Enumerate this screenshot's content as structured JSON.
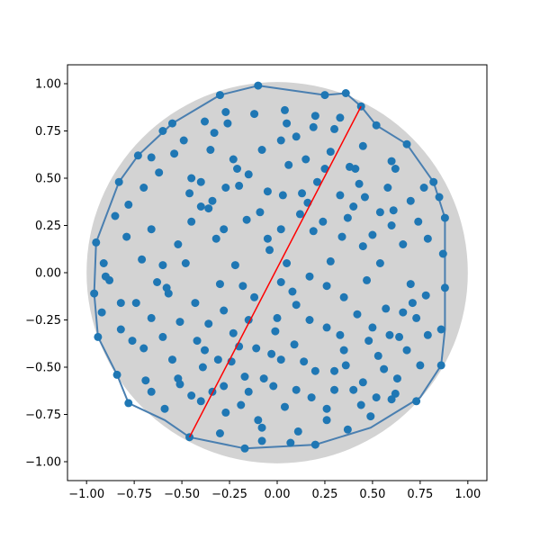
{
  "chart_data": {
    "type": "scatter",
    "title": "",
    "xlabel": "",
    "ylabel": "",
    "xlim": [
      -1.1,
      1.1
    ],
    "ylim": [
      -1.1,
      1.1
    ],
    "grid": false,
    "x_ticks": [
      "−1.00",
      "−0.75",
      "−0.50",
      "−0.25",
      "0.00",
      "0.25",
      "0.50",
      "0.75",
      "1.00"
    ],
    "y_ticks": [
      "−1.00",
      "−0.75",
      "−0.50",
      "−0.25",
      "0.00",
      "0.25",
      "0.50",
      "0.75",
      "1.00"
    ],
    "x_tick_values": [
      -1.0,
      -0.75,
      -0.5,
      -0.25,
      0.0,
      0.25,
      0.5,
      0.75,
      1.0
    ],
    "y_tick_values": [
      -1.0,
      -0.75,
      -0.5,
      -0.25,
      0.0,
      0.25,
      0.5,
      0.75,
      1.0
    ],
    "colors": {
      "points": "#1f77b4",
      "disk": "#d3d3d3",
      "hull": "#4a7fb0",
      "diameter": "#ff0000",
      "axes": "#000000"
    },
    "disk_radius": 1.0,
    "points": [
      [
        -0.1,
        0.99
      ],
      [
        0.25,
        0.94
      ],
      [
        0.44,
        0.88
      ],
      [
        -0.3,
        0.94
      ],
      [
        0.36,
        0.95
      ],
      [
        -0.55,
        0.79
      ],
      [
        -0.27,
        0.85
      ],
      [
        -0.12,
        0.84
      ],
      [
        0.04,
        0.86
      ],
      [
        0.2,
        0.83
      ],
      [
        -0.73,
        0.62
      ],
      [
        -0.6,
        0.75
      ],
      [
        -0.38,
        0.8
      ],
      [
        0.1,
        0.72
      ],
      [
        0.3,
        0.76
      ],
      [
        0.52,
        0.78
      ],
      [
        -0.83,
        0.48
      ],
      [
        -0.54,
        0.63
      ],
      [
        -0.33,
        0.74
      ],
      [
        0.02,
        0.7
      ],
      [
        0.19,
        0.77
      ],
      [
        0.68,
        0.68
      ],
      [
        -0.95,
        0.16
      ],
      [
        -0.78,
        0.36
      ],
      [
        -0.45,
        0.5
      ],
      [
        -0.21,
        0.55
      ],
      [
        0.06,
        0.57
      ],
      [
        0.38,
        0.56
      ],
      [
        0.62,
        0.55
      ],
      [
        0.82,
        0.48
      ],
      [
        -0.91,
        0.05
      ],
      [
        -0.71,
        0.07
      ],
      [
        -0.6,
        0.04
      ],
      [
        -0.4,
        0.35
      ],
      [
        -0.15,
        0.52
      ],
      [
        0.13,
        0.42
      ],
      [
        0.33,
        0.41
      ],
      [
        0.58,
        0.45
      ],
      [
        0.77,
        0.45
      ],
      [
        -0.96,
        -0.11
      ],
      [
        -0.88,
        -0.04
      ],
      [
        -0.74,
        -0.16
      ],
      [
        -0.58,
        -0.08
      ],
      [
        -0.45,
        0.27
      ],
      [
        -0.34,
        0.38
      ],
      [
        -0.09,
        0.32
      ],
      [
        0.16,
        0.37
      ],
      [
        0.4,
        0.35
      ],
      [
        0.61,
        0.33
      ],
      [
        0.88,
        0.29
      ],
      [
        -0.92,
        -0.21
      ],
      [
        -0.82,
        -0.3
      ],
      [
        -0.66,
        -0.24
      ],
      [
        -0.51,
        -0.26
      ],
      [
        -0.3,
        -0.06
      ],
      [
        -0.04,
        0.12
      ],
      [
        0.05,
        0.05
      ],
      [
        0.24,
        0.27
      ],
      [
        0.45,
        0.14
      ],
      [
        0.66,
        0.15
      ],
      [
        0.87,
        0.1
      ],
      [
        -0.94,
        -0.34
      ],
      [
        -0.76,
        -0.36
      ],
      [
        -0.6,
        -0.34
      ],
      [
        -0.38,
        -0.41
      ],
      [
        -0.23,
        -0.32
      ],
      [
        0.0,
        -0.24
      ],
      [
        0.17,
        -0.02
      ],
      [
        0.35,
        -0.13
      ],
      [
        0.57,
        -0.19
      ],
      [
        0.73,
        -0.24
      ],
      [
        0.88,
        -0.08
      ],
      [
        -0.84,
        -0.54
      ],
      [
        -0.69,
        -0.57
      ],
      [
        -0.52,
        -0.56
      ],
      [
        -0.31,
        -0.46
      ],
      [
        -0.11,
        -0.4
      ],
      [
        0.09,
        -0.38
      ],
      [
        0.26,
        -0.29
      ],
      [
        0.42,
        -0.22
      ],
      [
        0.64,
        -0.34
      ],
      [
        0.86,
        -0.3
      ],
      [
        -0.78,
        -0.69
      ],
      [
        -0.59,
        -0.72
      ],
      [
        -0.46,
        -0.87
      ],
      [
        -0.34,
        -0.63
      ],
      [
        -0.15,
        -0.63
      ],
      [
        0.02,
        -0.46
      ],
      [
        0.2,
        -0.52
      ],
      [
        0.36,
        -0.49
      ],
      [
        0.56,
        -0.51
      ],
      [
        0.75,
        -0.49
      ],
      [
        0.86,
        -0.49
      ],
      [
        -0.45,
        -0.65
      ],
      [
        -0.27,
        -0.74
      ],
      [
        -0.1,
        -0.78
      ],
      [
        0.1,
        -0.62
      ],
      [
        0.26,
        -0.72
      ],
      [
        0.44,
        -0.7
      ],
      [
        0.62,
        -0.64
      ],
      [
        0.73,
        -0.68
      ],
      [
        -0.17,
        -0.93
      ],
      [
        -0.08,
        -0.89
      ],
      [
        0.11,
        -0.84
      ],
      [
        0.2,
        -0.91
      ],
      [
        0.37,
        -0.83
      ],
      [
        0.49,
        -0.76
      ],
      [
        0.6,
        -0.67
      ],
      [
        -0.08,
        -0.82
      ],
      [
        -0.17,
        -0.55
      ],
      [
        -0.24,
        -0.47
      ],
      [
        -0.03,
        -0.43
      ],
      [
        0.3,
        -0.62
      ],
      [
        0.45,
        -0.58
      ],
      [
        -0.51,
        -0.59
      ],
      [
        -0.4,
        -0.68
      ],
      [
        -0.28,
        -0.6
      ],
      [
        -0.19,
        -0.7
      ],
      [
        0.04,
        -0.71
      ],
      [
        0.18,
        -0.66
      ],
      [
        0.35,
        -0.41
      ],
      [
        0.53,
        -0.44
      ],
      [
        0.68,
        -0.41
      ],
      [
        -0.66,
        0.61
      ],
      [
        -0.49,
        0.7
      ],
      [
        -0.35,
        0.65
      ],
      [
        0.15,
        0.6
      ],
      [
        0.28,
        0.64
      ],
      [
        0.45,
        0.67
      ],
      [
        0.6,
        0.59
      ],
      [
        -0.79,
        0.19
      ],
      [
        -0.66,
        0.23
      ],
      [
        -0.52,
        0.15
      ],
      [
        -0.32,
        0.18
      ],
      [
        -0.16,
        0.28
      ],
      [
        0.02,
        0.23
      ],
      [
        0.19,
        0.22
      ],
      [
        0.34,
        0.19
      ],
      [
        0.5,
        0.2
      ],
      [
        0.74,
        0.27
      ],
      [
        -0.57,
        -0.11
      ],
      [
        -0.43,
        -0.16
      ],
      [
        -0.28,
        -0.2
      ],
      [
        -0.12,
        -0.13
      ],
      [
        0.08,
        -0.1
      ],
      [
        0.26,
        -0.07
      ],
      [
        0.47,
        -0.04
      ],
      [
        0.7,
        -0.06
      ],
      [
        -0.7,
        -0.4
      ],
      [
        -0.55,
        -0.46
      ],
      [
        -0.39,
        -0.5
      ],
      [
        -0.2,
        -0.39
      ],
      [
        -0.01,
        -0.31
      ],
      [
        0.17,
        -0.25
      ],
      [
        0.33,
        -0.33
      ],
      [
        0.5,
        -0.29
      ],
      [
        0.66,
        -0.21
      ],
      [
        -0.85,
        0.3
      ],
      [
        -0.9,
        -0.02
      ],
      [
        -0.7,
        0.45
      ],
      [
        -0.46,
        0.42
      ],
      [
        -0.27,
        0.45
      ],
      [
        -0.05,
        0.43
      ],
      [
        0.21,
        0.48
      ],
      [
        0.41,
        0.55
      ],
      [
        0.7,
        0.38
      ],
      [
        0.79,
        0.18
      ],
      [
        -0.63,
        -0.05
      ],
      [
        -0.48,
        0.05
      ],
      [
        -0.36,
        -0.27
      ],
      [
        -0.18,
        -0.07
      ],
      [
        0.02,
        -0.05
      ],
      [
        0.28,
        0.06
      ],
      [
        0.54,
        0.05
      ],
      [
        0.78,
        -0.12
      ],
      [
        -0.26,
        0.79
      ],
      [
        0.05,
        0.79
      ],
      [
        0.33,
        0.82
      ],
      [
        -0.62,
        0.53
      ],
      [
        0.54,
        0.32
      ],
      [
        -0.08,
        0.65
      ],
      [
        0.25,
        0.55
      ],
      [
        -0.36,
        0.34
      ],
      [
        0.12,
        0.31
      ],
      [
        -0.66,
        -0.63
      ],
      [
        -0.3,
        -0.85
      ],
      [
        0.07,
        -0.9
      ],
      [
        0.26,
        -0.78
      ],
      [
        0.52,
        -0.66
      ],
      [
        0.63,
        -0.56
      ],
      [
        -0.42,
        -0.36
      ],
      [
        -0.07,
        -0.56
      ],
      [
        0.14,
        -0.47
      ],
      [
        0.4,
        -0.62
      ],
      [
        0.71,
        -0.16
      ],
      [
        0.85,
        0.4
      ],
      [
        0.6,
        0.25
      ],
      [
        0.43,
        0.47
      ],
      [
        0.37,
        0.29
      ],
      [
        0.46,
        0.4
      ],
      [
        -0.23,
        0.6
      ],
      [
        -0.4,
        0.48
      ],
      [
        -0.2,
        0.46
      ],
      [
        0.03,
        0.41
      ],
      [
        -0.28,
        0.23
      ],
      [
        -0.22,
        0.04
      ],
      [
        -0.05,
        0.18
      ],
      [
        0.1,
        -0.17
      ],
      [
        -0.15,
        -0.25
      ],
      [
        -0.02,
        -0.6
      ],
      [
        0.3,
        -0.52
      ],
      [
        0.48,
        -0.36
      ],
      [
        0.59,
        -0.33
      ],
      [
        0.79,
        -0.33
      ],
      [
        -0.82,
        -0.16
      ]
    ],
    "hull": [
      [
        -0.1,
        0.99
      ],
      [
        0.25,
        0.94
      ],
      [
        0.36,
        0.95
      ],
      [
        0.44,
        0.88
      ],
      [
        0.52,
        0.78
      ],
      [
        0.68,
        0.68
      ],
      [
        0.82,
        0.48
      ],
      [
        0.88,
        0.29
      ],
      [
        0.88,
        -0.08
      ],
      [
        0.88,
        -0.3
      ],
      [
        0.86,
        -0.49
      ],
      [
        0.75,
        -0.66
      ],
      [
        0.62,
        -0.74
      ],
      [
        0.49,
        -0.82
      ],
      [
        0.2,
        -0.91
      ],
      [
        -0.17,
        -0.93
      ],
      [
        -0.46,
        -0.87
      ],
      [
        -0.59,
        -0.78
      ],
      [
        -0.78,
        -0.69
      ],
      [
        -0.84,
        -0.54
      ],
      [
        -0.94,
        -0.34
      ],
      [
        -0.96,
        -0.11
      ],
      [
        -0.95,
        0.16
      ],
      [
        -0.83,
        0.48
      ],
      [
        -0.73,
        0.62
      ],
      [
        -0.55,
        0.79
      ],
      [
        -0.3,
        0.94
      ],
      [
        -0.1,
        0.99
      ]
    ],
    "diameter": [
      [
        -0.46,
        -0.87
      ],
      [
        0.44,
        0.88
      ]
    ]
  }
}
